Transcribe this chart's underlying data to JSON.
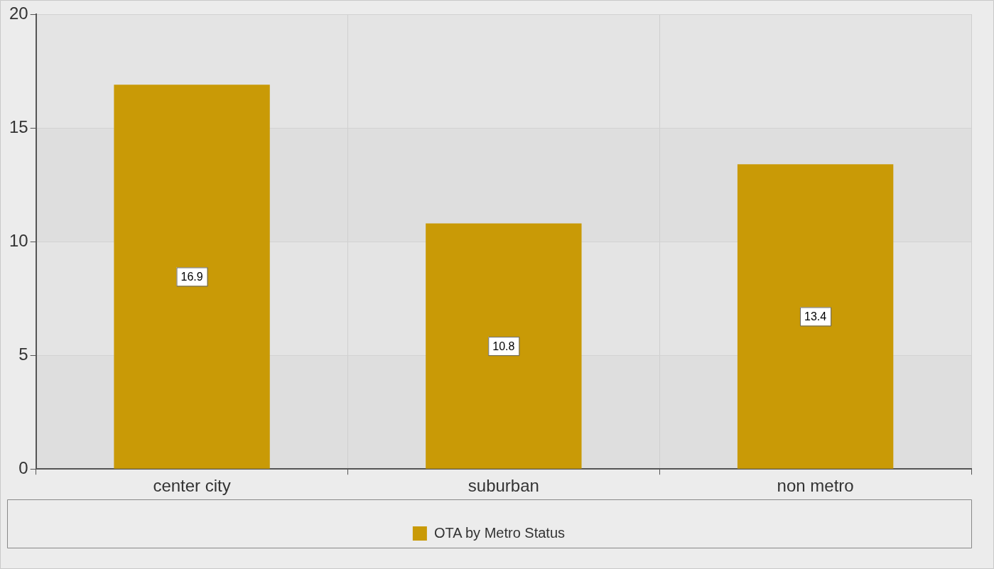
{
  "chart_data": {
    "type": "bar",
    "categories": [
      "center city",
      "suburban",
      "non metro"
    ],
    "series": [
      {
        "name": "OTA by Metro Status",
        "color": "#c99a06",
        "values": [
          16.9,
          10.8,
          13.4
        ]
      }
    ],
    "ylim": [
      0,
      20
    ],
    "yticks": [
      0,
      5,
      10,
      15,
      20
    ],
    "grid": true,
    "legend": "bottom",
    "data_labels": true
  }
}
